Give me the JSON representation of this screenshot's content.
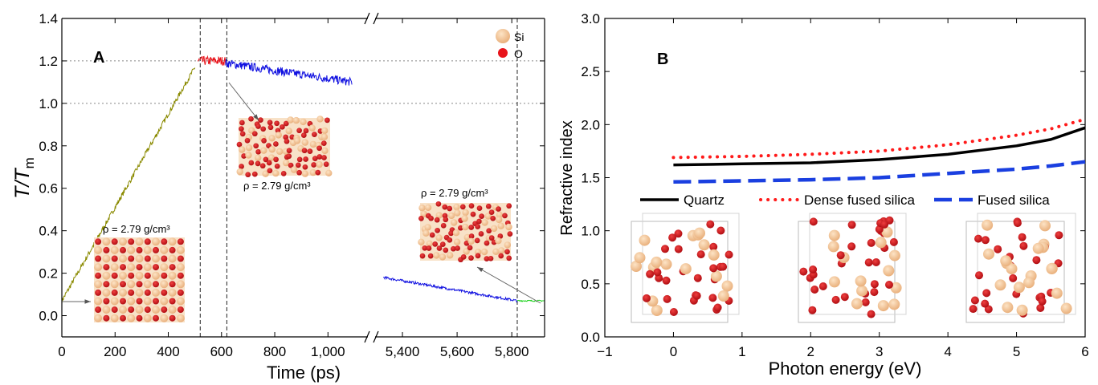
{
  "chart_data": [
    {
      "panel": "A",
      "type": "line",
      "xlabel": "Time (ps)",
      "ylabel_main": "T/T",
      "ylabel_sub": "m",
      "broken_axis": true,
      "segments": [
        {
          "xlim": [
            0,
            1150
          ],
          "ticks": [
            0,
            200,
            400,
            600,
            800,
            1000
          ],
          "tick_labels": [
            "0",
            "200",
            "400",
            "600",
            "800",
            "1,000"
          ]
        },
        {
          "xlim": [
            5300,
            5920
          ],
          "ticks": [
            5400,
            5600,
            5800
          ],
          "tick_labels": [
            "5,400",
            "5,600",
            "5,800"
          ]
        }
      ],
      "ylim": [
        -0.1,
        1.4
      ],
      "yticks": [
        0.0,
        0.2,
        0.4,
        0.6,
        0.8,
        1.0,
        1.2,
        1.4
      ],
      "ytick_labels": [
        "0.0",
        "0.2",
        "0.4",
        "0.6",
        "0.8",
        "1.0",
        "1.2",
        "1.4"
      ],
      "reference_lines_y": [
        1.0,
        1.2
      ],
      "vertical_lines_x": [
        520,
        620,
        5820
      ],
      "series": [
        {
          "color": "#8a8a00",
          "x": [
            0,
            500
          ],
          "y": [
            0.07,
            1.17
          ],
          "noise": 0.012
        },
        {
          "color": "#e8141b",
          "x": [
            510,
            615
          ],
          "y": [
            1.2,
            1.2
          ],
          "noise": 0.022
        },
        {
          "color": "#1010e0",
          "x": [
            615,
            1090
          ],
          "y": [
            1.19,
            1.1
          ],
          "noise": 0.02
        },
        {
          "color": "#1010e0",
          "x": [
            5330,
            5820
          ],
          "y": [
            0.18,
            0.07
          ],
          "noise": 0.006
        },
        {
          "color": "#18d018",
          "x": [
            5820,
            5920
          ],
          "y": [
            0.07,
            0.07
          ],
          "noise": 0.003
        }
      ],
      "legend": [
        {
          "label": "Si",
          "color": "#f4c08c"
        },
        {
          "label": "O",
          "color": "#e8141b"
        }
      ],
      "insets": [
        {
          "label": "ρ = 2.79 g/cm³",
          "style": "crystal"
        },
        {
          "label": "ρ = 2.79 g/cm³",
          "style": "liquid"
        },
        {
          "label": "ρ = 2.79 g/cm³",
          "style": "glass"
        }
      ]
    },
    {
      "panel": "B",
      "type": "line",
      "xlabel": "Photon energy (eV)",
      "ylabel": "Refractive index",
      "xlim": [
        -1,
        6
      ],
      "ylim": [
        0,
        3
      ],
      "xticks": [
        -1,
        0,
        1,
        2,
        3,
        4,
        5,
        6
      ],
      "xtick_labels": [
        "−1",
        "0",
        "1",
        "2",
        "3",
        "4",
        "5",
        "6"
      ],
      "yticks": [
        0.0,
        0.5,
        1.0,
        1.5,
        2.0,
        2.5,
        3.0
      ],
      "ytick_labels": [
        "0.0",
        "0.5",
        "1.0",
        "1.5",
        "2.0",
        "2.5",
        "3.0"
      ],
      "series": [
        {
          "name": "Quartz",
          "style": "solid",
          "color": "#000000",
          "x": [
            0,
            1,
            2,
            3,
            4,
            5,
            5.5,
            6
          ],
          "y": [
            1.62,
            1.63,
            1.64,
            1.67,
            1.72,
            1.8,
            1.86,
            1.97
          ]
        },
        {
          "name": "Dense fused silica",
          "style": "dotted",
          "color": "#ff1a1a",
          "x": [
            0,
            1,
            2,
            3,
            4,
            5,
            5.5,
            6
          ],
          "y": [
            1.69,
            1.7,
            1.72,
            1.75,
            1.81,
            1.9,
            1.96,
            2.05
          ]
        },
        {
          "name": "Fused silica",
          "style": "dashed",
          "color": "#1a3fe0",
          "x": [
            0,
            1,
            2,
            3,
            4,
            5,
            5.5,
            6
          ],
          "y": [
            1.46,
            1.47,
            1.48,
            1.5,
            1.54,
            1.58,
            1.61,
            1.65
          ]
        }
      ]
    }
  ],
  "panel_labels": {
    "a": "A",
    "b": "B"
  }
}
